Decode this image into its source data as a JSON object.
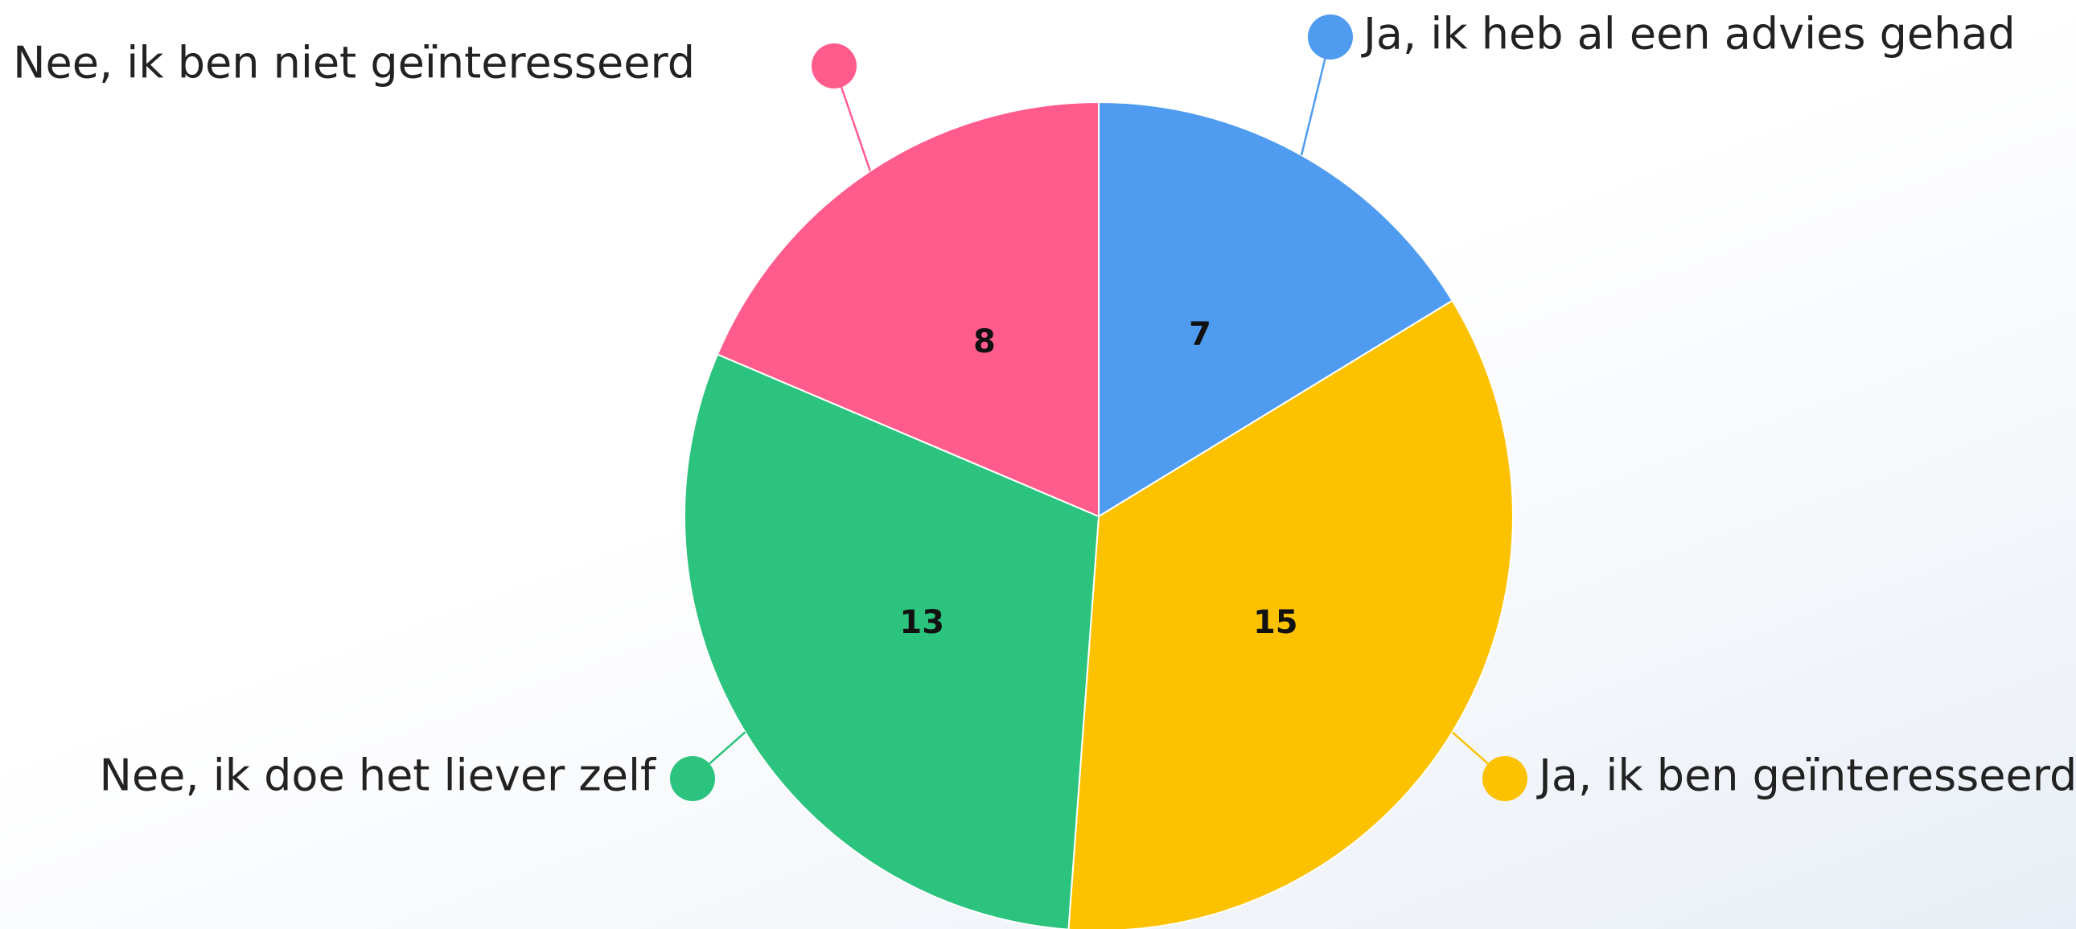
{
  "chart_data": {
    "type": "pie",
    "categories": [
      "Ja, ik heb al een advies gehad",
      "Ja, ik ben geïnteresseerd",
      "Nee, ik doe het liever zelf",
      "Nee, ik ben niet geïnteresseerd"
    ],
    "values": [
      7,
      15,
      13,
      8
    ],
    "colors": [
      "#4f9bf0",
      "#fcc200",
      "#2bc37e",
      "#ff5c8d"
    ]
  }
}
